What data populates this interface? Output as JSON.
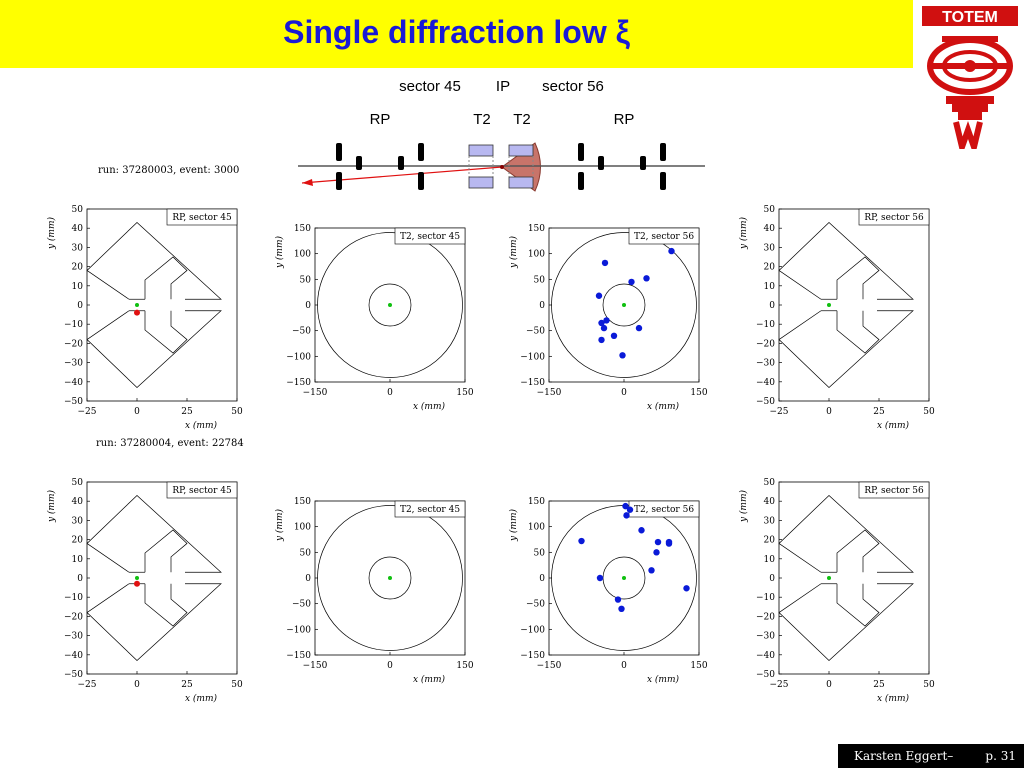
{
  "slide": {
    "title": "Single diffraction low ξ",
    "logo_text": "TOTEM"
  },
  "schematic": {
    "top_labels": [
      "sector 45",
      "IP",
      "sector 56"
    ],
    "detector_labels": [
      "RP",
      "T2",
      "T2",
      "RP"
    ]
  },
  "footer": {
    "author": "Karsten Eggert–",
    "page": "p. 31"
  },
  "colors": {
    "title_bg": "#ffff00",
    "title_text": "#1a1ad6",
    "logo_red": "#d01010",
    "hit_blue": "#0a1ad8",
    "hit_red": "#e01010",
    "center_green": "#10c010",
    "t2_fill": "#b8b8f0",
    "cone_fill": "#c8746a"
  },
  "events": [
    {
      "run_label": "run: 37280003, event: 3000",
      "plots": [
        {
          "kind": "rp",
          "label": "RP, sector 45",
          "xlabel": "x (mm)",
          "ylabel": "y (mm)",
          "xticks": [
            -25,
            0,
            25,
            50
          ],
          "yticks": [
            50,
            40,
            30,
            20,
            10,
            0,
            -10,
            -20,
            -30,
            -40,
            -50
          ],
          "xlim": [
            -25,
            50
          ],
          "ylim": [
            -50,
            50
          ],
          "hits": [
            {
              "x": 0,
              "y": -4
            }
          ]
        },
        {
          "kind": "t2",
          "label": "T2, sector 45",
          "xlabel": "x (mm)",
          "ylabel": "y (mm)",
          "xticks": [
            -150,
            0,
            150
          ],
          "yticks": [
            150,
            100,
            50,
            0,
            -50,
            -100,
            -150
          ],
          "xlim": [
            -150,
            150
          ],
          "ylim": [
            -150,
            150
          ],
          "hits": []
        },
        {
          "kind": "t2",
          "label": "T2, sector 56",
          "xlabel": "x (mm)",
          "ylabel": "y (mm)",
          "xticks": [
            -150,
            0,
            150
          ],
          "yticks": [
            150,
            100,
            50,
            0,
            -50,
            -100,
            -150
          ],
          "xlim": [
            -150,
            150
          ],
          "ylim": [
            -150,
            150
          ],
          "hits": [
            {
              "x": 95,
              "y": 105
            },
            {
              "x": -38,
              "y": 82
            },
            {
              "x": 45,
              "y": 52
            },
            {
              "x": 15,
              "y": 45
            },
            {
              "x": -50,
              "y": 18
            },
            {
              "x": -35,
              "y": -30
            },
            {
              "x": -45,
              "y": -35
            },
            {
              "x": -40,
              "y": -45
            },
            {
              "x": 30,
              "y": -45
            },
            {
              "x": -20,
              "y": -60
            },
            {
              "x": -45,
              "y": -68
            },
            {
              "x": -3,
              "y": -98
            }
          ]
        },
        {
          "kind": "rp",
          "label": "RP, sector 56",
          "xlabel": "x (mm)",
          "ylabel": "y (mm)",
          "xticks": [
            -25,
            0,
            25,
            50
          ],
          "yticks": [
            50,
            40,
            30,
            20,
            10,
            0,
            -10,
            -20,
            -30,
            -40,
            -50
          ],
          "xlim": [
            -25,
            50
          ],
          "ylim": [
            -50,
            50
          ],
          "hits": []
        }
      ]
    },
    {
      "run_label": "run: 37280004, event: 22784",
      "plots": [
        {
          "kind": "rp",
          "label": "RP, sector 45",
          "xlabel": "x (mm)",
          "ylabel": "y (mm)",
          "xticks": [
            -25,
            0,
            25,
            50
          ],
          "yticks": [
            50,
            40,
            30,
            20,
            10,
            0,
            -10,
            -20,
            -30,
            -40,
            -50
          ],
          "xlim": [
            -25,
            50
          ],
          "ylim": [
            -50,
            50
          ],
          "hits": [
            {
              "x": 0,
              "y": -3
            }
          ]
        },
        {
          "kind": "t2",
          "label": "T2, sector 45",
          "xlabel": "x (mm)",
          "ylabel": "y (mm)",
          "xticks": [
            -150,
            0,
            150
          ],
          "yticks": [
            150,
            100,
            50,
            0,
            -50,
            -100,
            -150
          ],
          "xlim": [
            -150,
            150
          ],
          "ylim": [
            -150,
            150
          ],
          "hits": []
        },
        {
          "kind": "t2",
          "label": "T2, sector 56",
          "xlabel": "x (mm)",
          "ylabel": "y (mm)",
          "xticks": [
            -150,
            0,
            150
          ],
          "yticks": [
            150,
            100,
            50,
            0,
            -50,
            -100,
            -150
          ],
          "xlim": [
            -150,
            150
          ],
          "ylim": [
            -150,
            150
          ],
          "hits": [
            {
              "x": 3,
              "y": 140
            },
            {
              "x": 12,
              "y": 133
            },
            {
              "x": 5,
              "y": 122
            },
            {
              "x": 35,
              "y": 93
            },
            {
              "x": -85,
              "y": 72
            },
            {
              "x": 68,
              "y": 70
            },
            {
              "x": 90,
              "y": 67
            },
            {
              "x": 90,
              "y": 70
            },
            {
              "x": 65,
              "y": 50
            },
            {
              "x": 55,
              "y": 15
            },
            {
              "x": -48,
              "y": 0
            },
            {
              "x": 125,
              "y": -20
            },
            {
              "x": -12,
              "y": -42
            },
            {
              "x": -5,
              "y": -60
            }
          ]
        },
        {
          "kind": "rp",
          "label": "RP, sector 56",
          "xlabel": "x (mm)",
          "ylabel": "y (mm)",
          "xticks": [
            -25,
            0,
            25,
            50
          ],
          "yticks": [
            50,
            40,
            30,
            20,
            10,
            0,
            -10,
            -20,
            -30,
            -40,
            -50
          ],
          "xlim": [
            -25,
            50
          ],
          "ylim": [
            -50,
            50
          ],
          "hits": []
        }
      ]
    }
  ]
}
